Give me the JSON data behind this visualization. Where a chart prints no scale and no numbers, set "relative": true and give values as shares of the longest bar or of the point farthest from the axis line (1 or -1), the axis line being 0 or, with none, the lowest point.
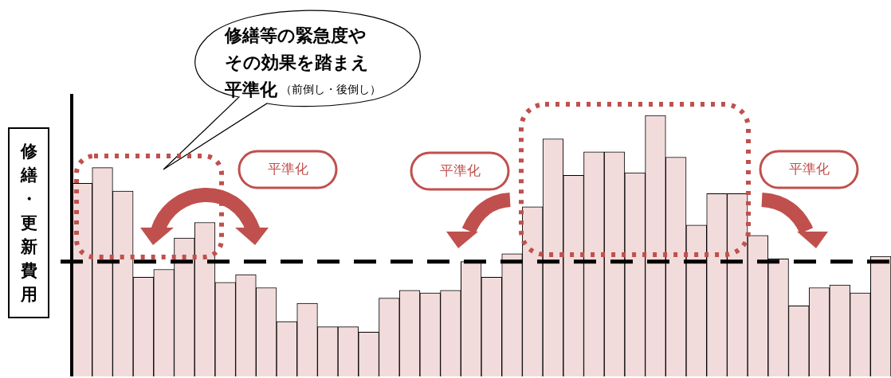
{
  "chart_data": {
    "type": "bar",
    "relative": true,
    "ylabel": "修繕・更新費用",
    "categories": [
      null,
      null,
      null,
      null,
      null,
      null,
      null,
      null,
      null,
      null,
      null,
      null,
      null,
      null,
      null,
      null,
      null,
      null,
      null,
      null,
      null,
      null,
      null,
      null,
      null,
      null,
      null,
      null,
      null,
      null,
      null,
      null,
      null,
      null,
      null,
      null,
      null,
      null,
      null,
      null
    ],
    "values": [
      0.74,
      0.8,
      0.71,
      0.38,
      0.41,
      0.53,
      0.59,
      0.36,
      0.39,
      0.34,
      0.21,
      0.28,
      0.19,
      0.19,
      0.17,
      0.3,
      0.33,
      0.32,
      0.33,
      0.44,
      0.38,
      0.47,
      0.65,
      0.91,
      0.77,
      0.86,
      0.86,
      0.78,
      1,
      0.84,
      0.58,
      0.7,
      0.7,
      0.54,
      0.45,
      0.27,
      0.34,
      0.35,
      0.32,
      0.46
    ],
    "color": "#f2dcdb",
    "ref_lines": [
      {
        "axis": "y",
        "value": 0.44,
        "color": "#000000",
        "line_style": "dashed"
      }
    ],
    "annotations": [
      "修繕等の緊急度や",
      "その効果を踏まえ",
      "平準化",
      "（前倒し・後倒し）",
      "平準化",
      "平準化",
      "平準化"
    ],
    "tick_labels": false,
    "legend": false
  }
}
